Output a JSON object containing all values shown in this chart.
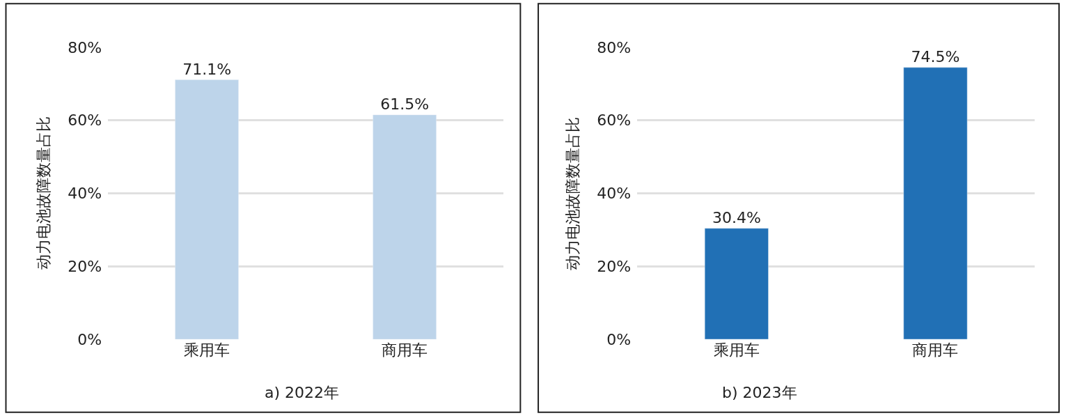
{
  "chart_data": [
    {
      "type": "bar",
      "categories": [
        "乘用车",
        "商用车"
      ],
      "values": [
        71.1,
        61.5
      ],
      "color": "#bdd4ea",
      "ylabel": "动力电池故障数量占比",
      "ylim": [
        0,
        80
      ],
      "yticks": [
        {
          "value": 0,
          "label": "0%"
        },
        {
          "value": 20,
          "label": "20%"
        },
        {
          "value": 40,
          "label": "40%"
        },
        {
          "value": 60,
          "label": "60%"
        },
        {
          "value": 80,
          "label": "80%"
        }
      ],
      "grid": "y",
      "legend": false,
      "value_labels": [
        "71.1%",
        "61.5%"
      ],
      "annotations": [
        "a) 2022年"
      ]
    },
    {
      "type": "bar",
      "categories": [
        "乘用车",
        "商用车"
      ],
      "values": [
        30.4,
        74.5
      ],
      "color": "#2170b5",
      "ylabel": "动力电池故障数量占比",
      "ylim": [
        0,
        80
      ],
      "yticks": [
        {
          "value": 0,
          "label": "0%"
        },
        {
          "value": 20,
          "label": "20%"
        },
        {
          "value": 40,
          "label": "40%"
        },
        {
          "value": 60,
          "label": "60%"
        },
        {
          "value": 80,
          "label": "80%"
        }
      ],
      "grid": "y",
      "legend": false,
      "value_labels": [
        "30.4%",
        "74.5%"
      ],
      "annotations": [
        "b) 2023年"
      ]
    }
  ]
}
